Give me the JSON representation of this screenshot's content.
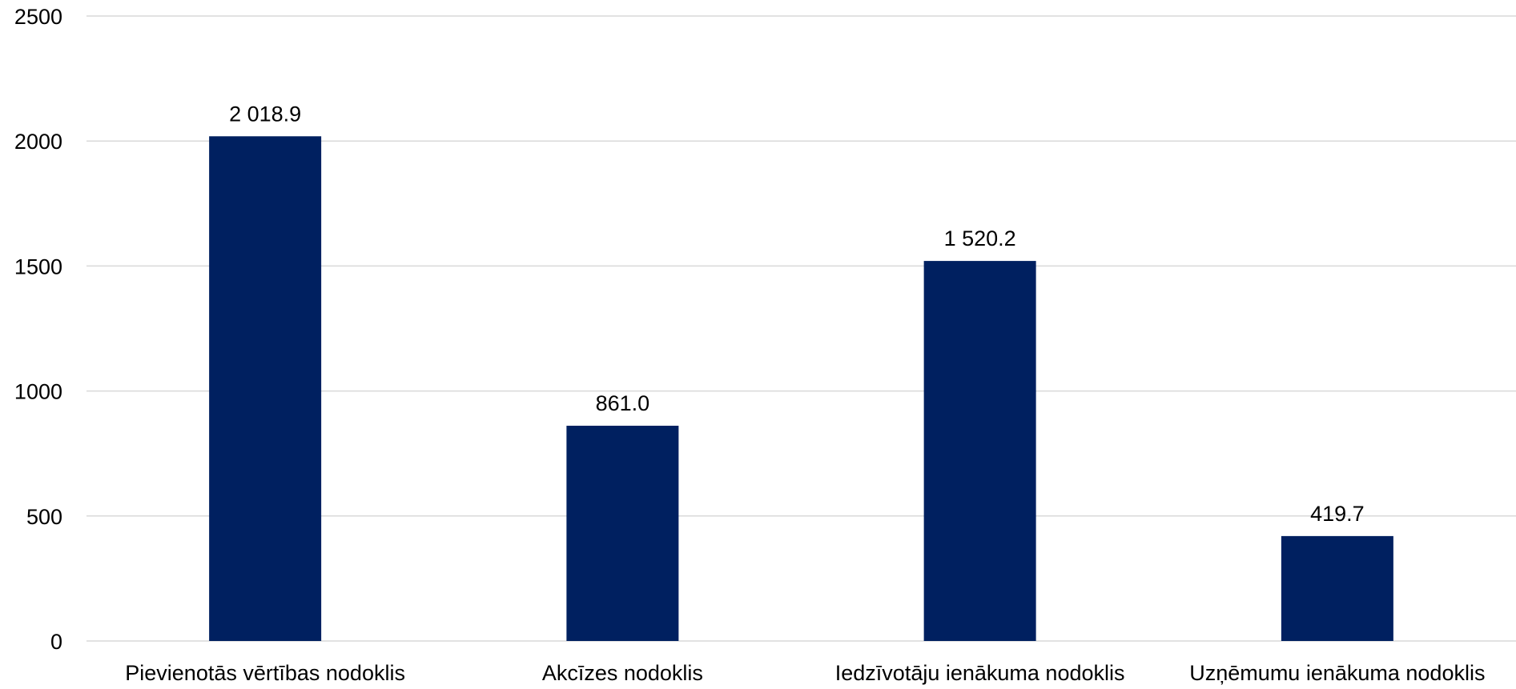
{
  "chart_data": {
    "type": "bar",
    "categories": [
      "Pievienotās vērtības nodoklis",
      "Akcīzes nodoklis",
      "Iedzīvotāju ienākuma nodoklis",
      "Uzņēmumu ienākuma nodoklis"
    ],
    "values": [
      2018.9,
      861.0,
      1520.2,
      419.7
    ],
    "data_labels": [
      "2 018.9",
      "861.0",
      "1 520.2",
      "419.7"
    ],
    "yticks": [
      0,
      500,
      1000,
      1500,
      2000,
      2500
    ],
    "ylim": [
      0,
      2500
    ],
    "title": "",
    "xlabel": "",
    "ylabel": "",
    "grid": true,
    "legend": "none",
    "bar_color": "#002060",
    "grid_color": "#d9d9d9"
  }
}
